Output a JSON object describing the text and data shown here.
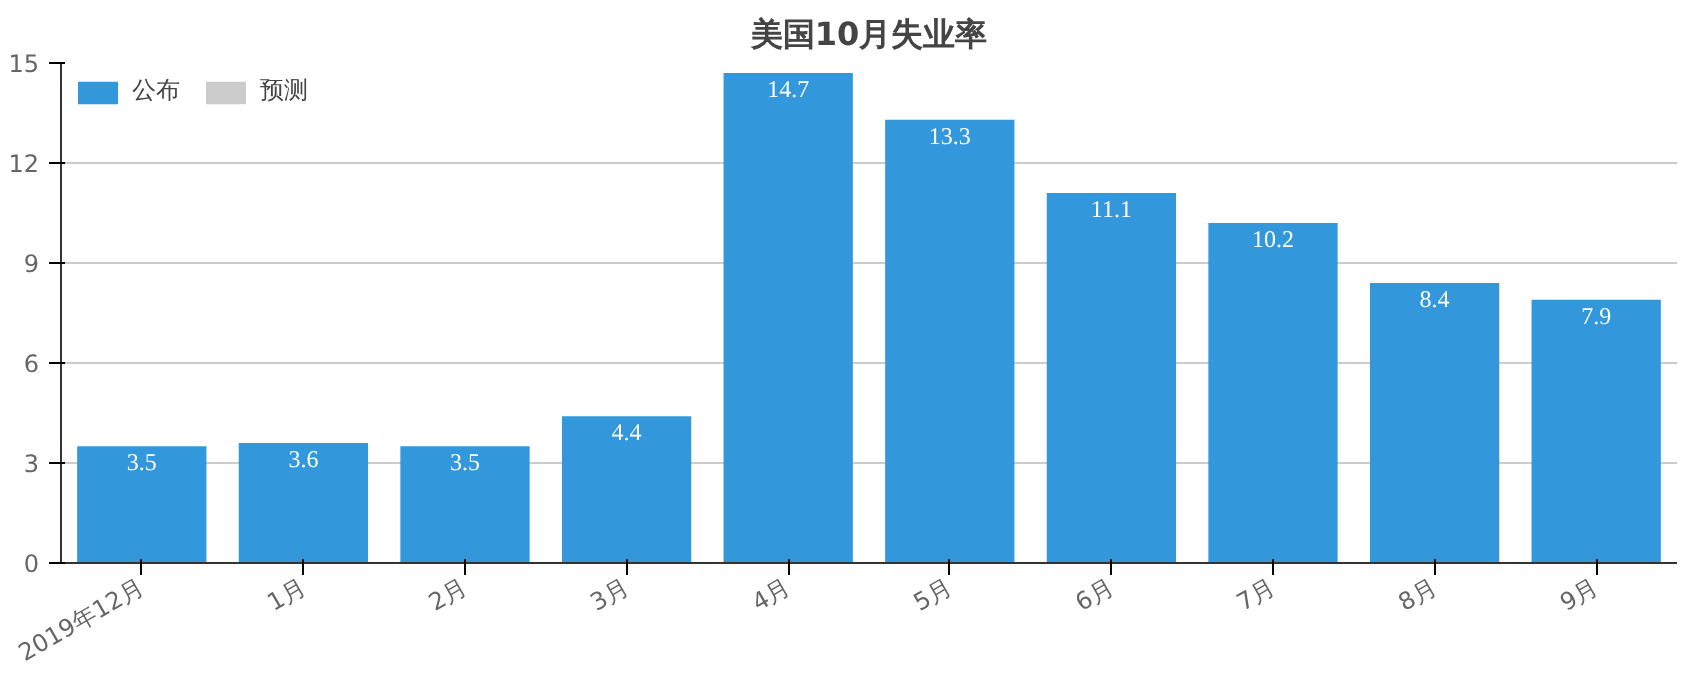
{
  "chart_data": {
    "type": "bar",
    "title": "美国10月失业率",
    "categories": [
      "2019年12月",
      "1月",
      "2月",
      "3月",
      "4月",
      "5月",
      "6月",
      "7月",
      "8月",
      "9月"
    ],
    "series": [
      {
        "name": "公布",
        "color": "#3398db",
        "values": [
          3.5,
          3.6,
          3.5,
          4.4,
          14.7,
          13.3,
          11.1,
          10.2,
          8.4,
          7.9
        ]
      },
      {
        "name": "预测",
        "color": "#cccccc",
        "values": [
          null,
          null,
          null,
          null,
          null,
          null,
          null,
          null,
          null,
          null
        ]
      }
    ],
    "ylim": [
      0,
      15
    ],
    "yticks": [
      0,
      3,
      6,
      9,
      12,
      15
    ],
    "grid": "y",
    "legend": "top left",
    "data_labels": true
  }
}
